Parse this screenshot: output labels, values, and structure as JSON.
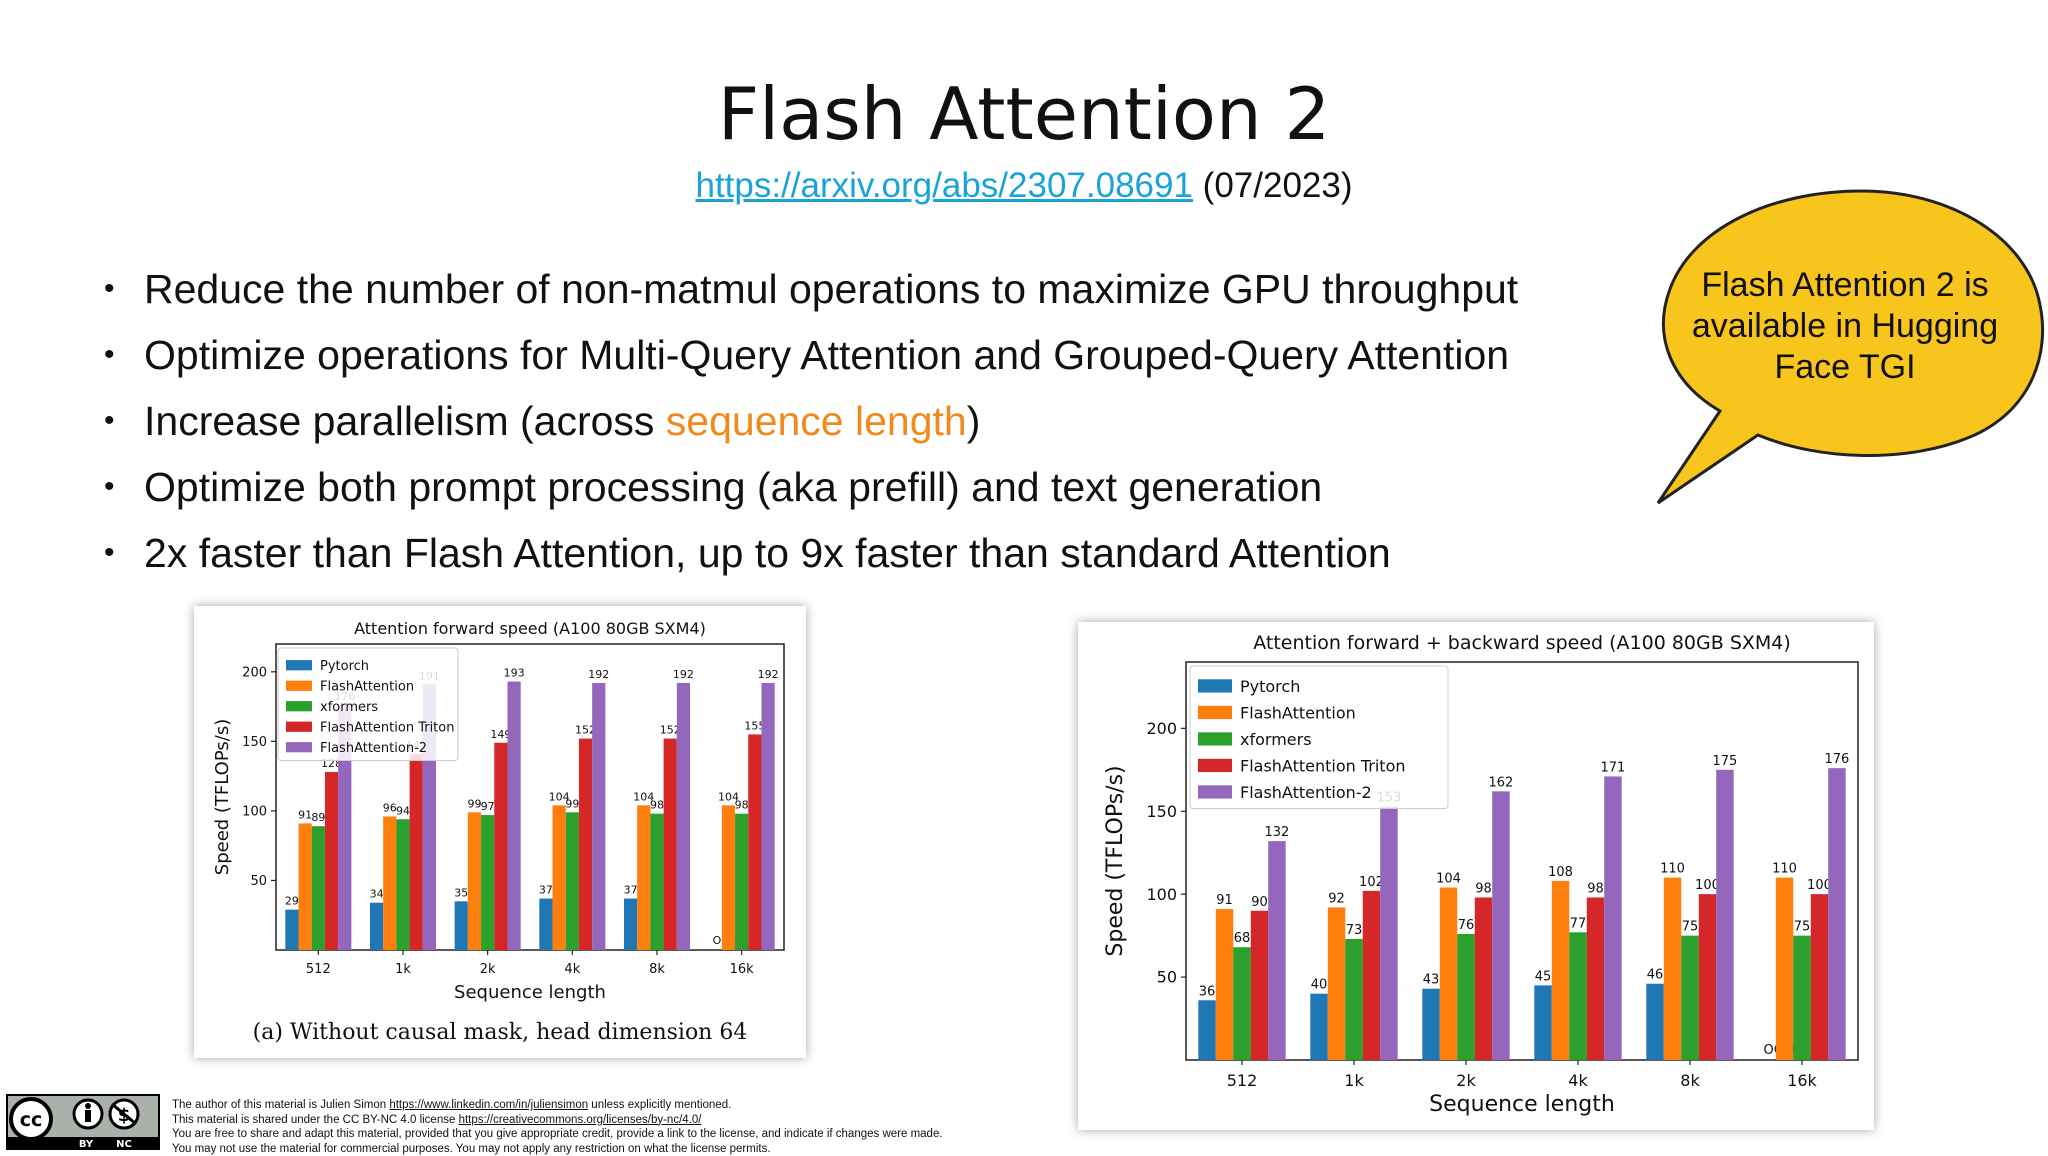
{
  "slide": {
    "title": "Flash Attention 2",
    "link": "https://arxiv.org/abs/2307.08691",
    "date": "(07/2023)",
    "bullets": [
      {
        "pre": "Reduce the number of non-matmul operations to maximize GPU throughput",
        "highlight": "",
        "post": ""
      },
      {
        "pre": "Optimize operations for Multi-Query Attention and Grouped-Query Attention",
        "highlight": "",
        "post": ""
      },
      {
        "pre": "Increase parallelism (across ",
        "highlight": "sequence length",
        "post": ")"
      },
      {
        "pre": "Optimize both prompt processing (aka prefill) and text generation",
        "highlight": "",
        "post": ""
      },
      {
        "pre": "2x faster than Flash Attention, up to 9x faster than standard Attention",
        "highlight": "",
        "post": ""
      }
    ],
    "bubble_lines": [
      "Flash Attention 2 is",
      "available in Hugging",
      "Face TGI"
    ],
    "bubble_color": "#f8c51c",
    "highlight_color": "#f08a1c",
    "link_color": "#1aa3d9"
  },
  "chart_data": [
    {
      "type": "bar",
      "title": "Attention forward speed (A100 80GB SXM4)",
      "caption": "(a) Without causal mask, head dimension 64",
      "xlabel": "Sequence length",
      "ylabel": "Speed (TFLOPs/s)",
      "ylim": [
        0,
        220
      ],
      "yticks": [
        50,
        100,
        150,
        200
      ],
      "categories": [
        "512",
        "1k",
        "2k",
        "4k",
        "8k",
        "16k"
      ],
      "legend_position": "top-left",
      "oom_label": "OOM",
      "series": [
        {
          "name": "Pytorch",
          "color": "#1f77b4",
          "values": [
            29,
            34,
            35,
            37,
            37,
            null
          ]
        },
        {
          "name": "FlashAttention",
          "color": "#ff7f0e",
          "values": [
            91,
            96,
            99,
            104,
            104,
            104
          ]
        },
        {
          "name": "xformers",
          "color": "#2ca02c",
          "values": [
            89,
            94,
            97,
            99,
            98,
            98
          ]
        },
        {
          "name": "FlashAttention Triton",
          "color": "#d62728",
          "values": [
            128,
            141,
            149,
            152,
            152,
            155
          ]
        },
        {
          "name": "FlashAttention-2",
          "color": "#9467bd",
          "values": [
            176,
            191,
            193,
            192,
            192,
            192
          ]
        }
      ]
    },
    {
      "type": "bar",
      "title": "Attention forward + backward speed (A100 80GB SXM4)",
      "xlabel": "Sequence length",
      "ylabel": "Speed (TFLOPs/s)",
      "ylim": [
        0,
        240
      ],
      "yticks": [
        50,
        100,
        150,
        200
      ],
      "categories": [
        "512",
        "1k",
        "2k",
        "4k",
        "8k",
        "16k"
      ],
      "legend_position": "top-left",
      "oom_label": "OOM",
      "series": [
        {
          "name": "Pytorch",
          "color": "#1f77b4",
          "values": [
            36,
            40,
            43,
            45,
            46,
            null
          ]
        },
        {
          "name": "FlashAttention",
          "color": "#ff7f0e",
          "values": [
            91,
            92,
            104,
            108,
            110,
            110
          ]
        },
        {
          "name": "xformers",
          "color": "#2ca02c",
          "values": [
            68,
            73,
            76,
            77,
            75,
            75
          ]
        },
        {
          "name": "FlashAttention Triton",
          "color": "#d62728",
          "values": [
            90,
            102,
            98,
            98,
            100,
            100
          ]
        },
        {
          "name": "FlashAttention-2",
          "color": "#9467bd",
          "values": [
            132,
            153,
            162,
            171,
            175,
            176
          ]
        }
      ]
    }
  ],
  "footer": {
    "license_icon": "cc-by-nc-icon",
    "badge_by": "BY",
    "badge_nc": "NC",
    "line1_pre": "The author of this material is Julien Simon ",
    "line1_link": "https://www.linkedin.com/in/juliensimon",
    "line1_post": " unless explicitly mentioned.",
    "line2_pre": "This material is shared under the CC BY-NC 4.0 license ",
    "line2_link": "https://creativecommons.org/licenses/by-nc/4.0/",
    "line3": "You are free to share and adapt this material, provided that you give appropriate credit, provide a link to the license, and indicate if changes were made.",
    "line4": "You may not use the material for commercial purposes. You may not apply any restriction on what the license permits."
  }
}
